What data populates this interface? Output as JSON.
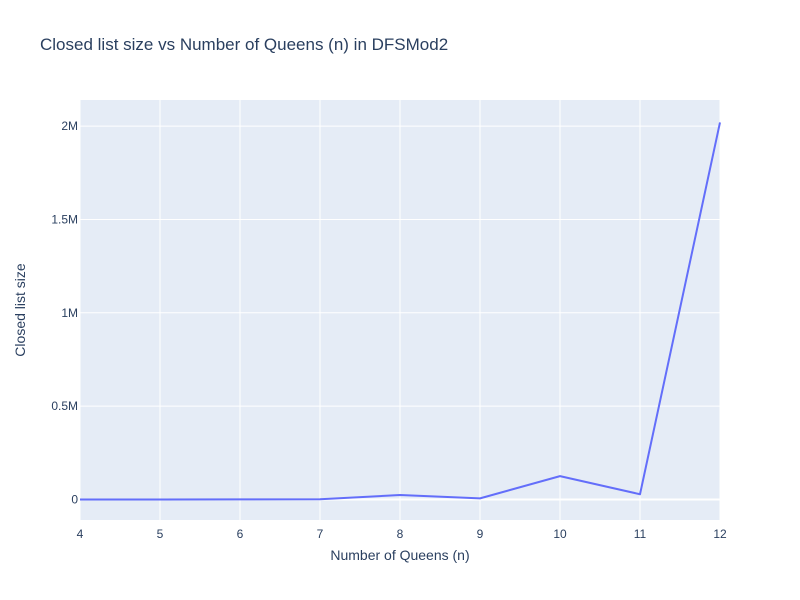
{
  "chart_data": {
    "type": "line",
    "title": "Closed list size vs Number of Queens (n) in DFSMod2",
    "xlabel": "Number of Queens (n)",
    "ylabel": "Closed list size",
    "x": [
      4,
      5,
      6,
      7,
      8,
      9,
      10,
      11,
      12
    ],
    "series": [
      {
        "values": [
          16,
          44,
          188,
          1120,
          24000,
          6000,
          125000,
          28000,
          2020000
        ]
      }
    ],
    "xlim": [
      4,
      12
    ],
    "ylim": [
      -110000,
      2140000
    ],
    "x_ticks": [
      {
        "value": 4,
        "label": "4"
      },
      {
        "value": 5,
        "label": "5"
      },
      {
        "value": 6,
        "label": "6"
      },
      {
        "value": 7,
        "label": "7"
      },
      {
        "value": 8,
        "label": "8"
      },
      {
        "value": 9,
        "label": "9"
      },
      {
        "value": 10,
        "label": "10"
      },
      {
        "value": 11,
        "label": "11"
      },
      {
        "value": 12,
        "label": "12"
      }
    ],
    "y_ticks": [
      {
        "value": 0,
        "label": "0"
      },
      {
        "value": 500000,
        "label": "0.5M"
      },
      {
        "value": 1000000,
        "label": "1M"
      },
      {
        "value": 1500000,
        "label": "1.5M"
      },
      {
        "value": 2000000,
        "label": "2M"
      }
    ],
    "grid": true,
    "legend": "none",
    "colors": {
      "line": "#636efa",
      "plot_bg": "#e5ecf6",
      "grid": "#ffffff",
      "text": "#2a3f5f"
    }
  }
}
